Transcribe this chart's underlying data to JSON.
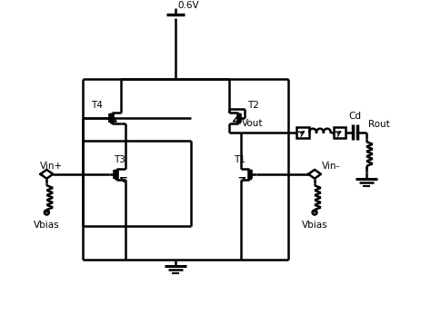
{
  "bg": "#ffffff",
  "lc": "#000000",
  "lw": 1.8,
  "fs": 7.5,
  "labels": {
    "vdd": "0.6V",
    "t1": "T1",
    "t2": "T2",
    "t3": "T3",
    "t4": "T4",
    "vout": "Vout",
    "vin_plus": "Vin+",
    "vin_minus": "Vin-",
    "vbias": "Vbias",
    "cd": "Cd",
    "rout": "Rout"
  }
}
